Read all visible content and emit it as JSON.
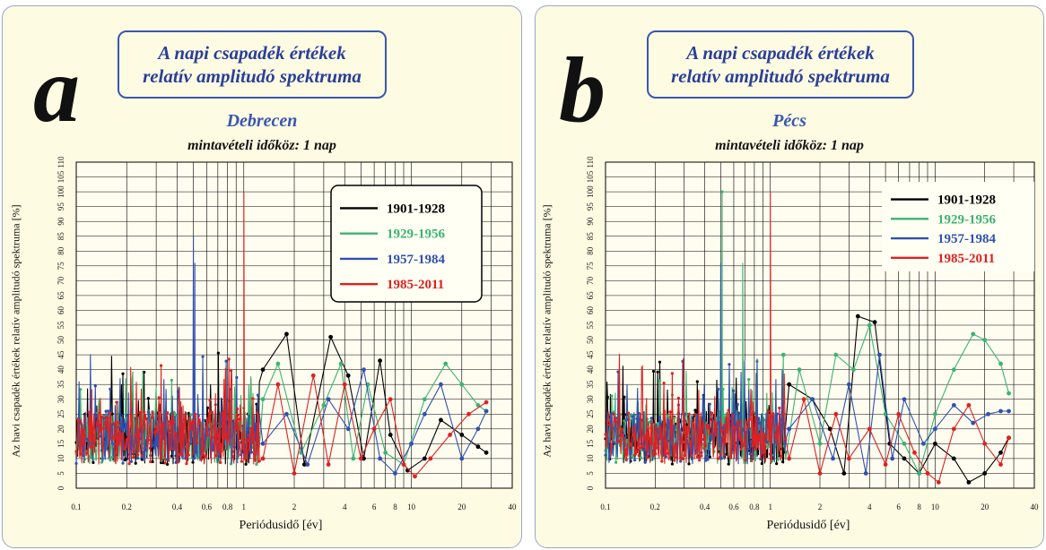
{
  "chart_data": [
    {
      "type": "line",
      "panel_letter": "a",
      "title_line1": "A napi csapadék értékek",
      "title_line2": "relatív amplitudó spektruma",
      "station": "Debrecen",
      "subtitle": "mintavételi időköz: 1 nap",
      "xlabel": "Periódusidő [év]",
      "ylabel": "Az havi csapadék értékek relatív amplitudó spektruma [%]",
      "x_scale": "log",
      "xlim": [
        0.1,
        40
      ],
      "ylim": [
        0,
        110
      ],
      "x_ticks": [
        "0.1",
        "0.2",
        "0.4",
        "0.6",
        "0.8",
        "1",
        "2",
        "4",
        "6",
        "8",
        "10",
        "20",
        "40"
      ],
      "y_ticks": [
        "0",
        "5",
        "10",
        "15",
        "20",
        "25",
        "30",
        "35",
        "40",
        "45",
        "50",
        "55",
        "60",
        "65",
        "70",
        "75",
        "80",
        "85",
        "90",
        "95",
        "100",
        "105",
        "110"
      ],
      "grid": true,
      "legend_placement": "top-right",
      "legend_style": "boxed",
      "series": [
        {
          "name": "1901-1928",
          "color": "#000000",
          "x": [
            1.3,
            1.8,
            2.3,
            3.3,
            4.2,
            5.2,
            6.5,
            7.5,
            9.5,
            12,
            15,
            20,
            25,
            28
          ],
          "y": [
            40,
            52,
            8,
            51,
            38,
            10,
            43,
            18,
            6,
            10,
            23,
            18,
            14,
            12
          ]
        },
        {
          "name": "1929-1956",
          "color": "#3cb371",
          "x": [
            1.3,
            1.6,
            2.2,
            3.0,
            3.8,
            4.5,
            5.5,
            7.0,
            9.0,
            12,
            16,
            20,
            25,
            28
          ],
          "y": [
            30,
            42,
            12,
            28,
            42,
            10,
            35,
            12,
            8,
            30,
            42,
            35,
            28,
            26
          ]
        },
        {
          "name": "1957-1984",
          "color": "#3050b0",
          "x": [
            1.3,
            1.8,
            2.4,
            3.2,
            4.2,
            5.2,
            6.5,
            8.0,
            10,
            12,
            15,
            20,
            25,
            28
          ],
          "y": [
            15,
            25,
            8,
            30,
            20,
            40,
            10,
            5,
            15,
            25,
            35,
            10,
            20,
            26
          ]
        },
        {
          "name": "1985-2011",
          "color": "#e02020",
          "x": [
            1.3,
            1.6,
            2.0,
            2.6,
            3.2,
            4.0,
            5.0,
            6.0,
            7.5,
            9.0,
            10.5,
            13,
            17,
            22,
            28
          ],
          "y": [
            10,
            35,
            5,
            38,
            8,
            35,
            10,
            20,
            30,
            8,
            4,
            10,
            18,
            25,
            29
          ]
        }
      ],
      "peaks": [
        {
          "series": "1985-2011",
          "x": 1.0,
          "y": 100
        },
        {
          "series": "1957-1984",
          "x": 0.5,
          "y": 85
        },
        {
          "series": "1957-1984",
          "x": 0.51,
          "y": 76
        }
      ]
    },
    {
      "type": "line",
      "panel_letter": "b",
      "title_line1": "A napi csapadék értékek",
      "title_line2": "relatív amplitudó spektruma",
      "station": "Pécs",
      "subtitle": "mintavételi időköz: 1 nap",
      "xlabel": "Periódusidő [év]",
      "ylabel": "Az havi csapadék értékek relatív amplitudó spektruma [%]",
      "x_scale": "log",
      "xlim": [
        0.1,
        40
      ],
      "ylim": [
        0,
        110
      ],
      "x_ticks": [
        "0.1",
        "0.2",
        "0.4",
        "0.6",
        "0.8",
        "1",
        "2",
        "4",
        "6",
        "8",
        "10",
        "20",
        "40"
      ],
      "y_ticks": [
        "0",
        "5",
        "10",
        "15",
        "20",
        "25",
        "30",
        "35",
        "40",
        "45",
        "50",
        "55",
        "60",
        "65",
        "70",
        "75",
        "80",
        "85",
        "90",
        "95",
        "100",
        "105",
        "110"
      ],
      "grid": true,
      "legend_placement": "top-right",
      "legend_style": "plain",
      "series": [
        {
          "name": "1901-1928",
          "color": "#000000",
          "x": [
            1.3,
            1.8,
            2.3,
            2.8,
            3.4,
            4.3,
            5.3,
            6.5,
            8.0,
            10,
            13,
            16,
            20,
            25,
            28
          ],
          "y": [
            35,
            30,
            20,
            5,
            58,
            56,
            15,
            10,
            5,
            15,
            10,
            2,
            5,
            12,
            17
          ]
        },
        {
          "name": "1929-1956",
          "color": "#3cb371",
          "x": [
            1.2,
            1.5,
            2.0,
            2.5,
            3.2,
            4.0,
            5.0,
            6.5,
            8.0,
            10,
            13,
            17,
            20,
            25,
            28
          ],
          "y": [
            45,
            40,
            15,
            45,
            40,
            55,
            25,
            15,
            5,
            25,
            40,
            52,
            50,
            42,
            32
          ]
        },
        {
          "name": "1957-1984",
          "color": "#3050b0",
          "x": [
            1.3,
            1.8,
            2.4,
            3.0,
            3.8,
            4.6,
            5.5,
            6.5,
            8.5,
            10,
            13,
            17,
            21,
            25,
            28
          ],
          "y": [
            20,
            30,
            10,
            35,
            5,
            45,
            10,
            30,
            15,
            20,
            28,
            22,
            25,
            26,
            26
          ]
        },
        {
          "name": "1985-2011",
          "color": "#e02020",
          "x": [
            1.3,
            1.6,
            2.0,
            2.5,
            3.0,
            4.0,
            5.0,
            6.0,
            7.5,
            9.0,
            10.5,
            13,
            16,
            20,
            25,
            28
          ],
          "y": [
            10,
            30,
            5,
            25,
            10,
            20,
            8,
            25,
            12,
            5,
            2,
            20,
            28,
            15,
            8,
            17
          ]
        }
      ],
      "peaks": [
        {
          "series": "1985-2011",
          "x": 1.0,
          "y": 100
        },
        {
          "series": "1929-1956",
          "x": 0.51,
          "y": 100
        },
        {
          "series": "1957-1984",
          "x": 0.5,
          "y": 76
        },
        {
          "series": "1929-1956",
          "x": 0.68,
          "y": 76
        }
      ]
    }
  ]
}
